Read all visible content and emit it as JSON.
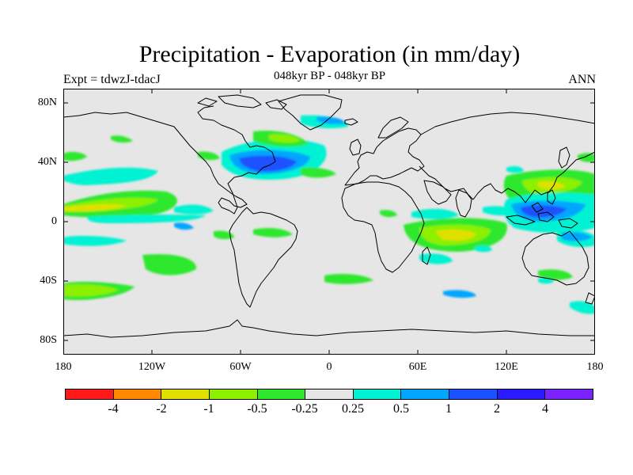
{
  "title": "Precipitation - Evaporation (in mm/day)",
  "experiment": "Expt = tdwzJ-tdacJ",
  "period": "048kyr BP - 048kyr BP",
  "season": "ANN",
  "y_axis_labels": [
    "80N",
    "40N",
    "0",
    "40S",
    "80S"
  ],
  "x_axis_labels": [
    "180",
    "120W",
    "60W",
    "0",
    "60E",
    "120E",
    "180"
  ],
  "colorbar": {
    "colors": [
      "#ff1a1a",
      "#ff8a00",
      "#e0e000",
      "#8cf000",
      "#2ee82e",
      "#e6e6e6",
      "#00f2d2",
      "#00a6ff",
      "#1a52ff",
      "#2a1aff",
      "#7a22ff"
    ],
    "labels": [
      "-4",
      "-2",
      "-1",
      "-0.5",
      "-0.25",
      "0.25",
      "0.5",
      "1",
      "2",
      "4"
    ]
  },
  "map_colors": {
    "background": "#e6e6e6",
    "coastline": "#000000"
  }
}
